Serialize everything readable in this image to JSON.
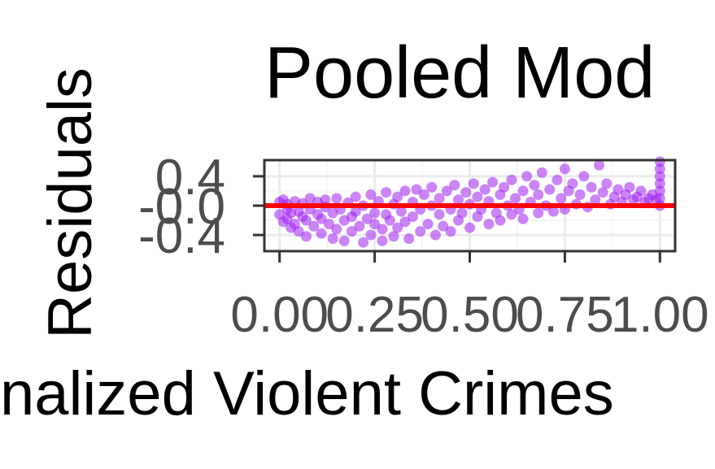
{
  "chart_data": {
    "type": "scatter",
    "title": "Pooled Mod",
    "xlabel": "nalized Violent Crimes",
    "ylabel": "Residuals",
    "xlim": [
      -0.04,
      1.04
    ],
    "ylim": [
      -0.62,
      0.62
    ],
    "x_ticks": [
      0.0,
      0.25,
      0.5,
      0.75,
      1.0
    ],
    "x_tick_labels": [
      "0.00",
      "0.25",
      "0.50",
      "0.75",
      "1.00"
    ],
    "y_ticks": [
      0.4,
      0.0,
      -0.4
    ],
    "y_tick_labels": [
      "0.4",
      "0.0",
      "-0.4"
    ],
    "y_tick_overlap_label": "-0.0",
    "reference_line": {
      "y": 0,
      "color": "#ff0000"
    },
    "point_color": "#a020f0",
    "point_alpha": 0.55,
    "grid": true,
    "series": [
      {
        "points": [
          [
            0.0,
            -0.12
          ],
          [
            0.0,
            0.05
          ],
          [
            0.01,
            -0.22
          ],
          [
            0.01,
            0.08
          ],
          [
            0.02,
            -0.18
          ],
          [
            0.02,
            -0.05
          ],
          [
            0.02,
            0.02
          ],
          [
            0.03,
            -0.3
          ],
          [
            0.03,
            -0.1
          ],
          [
            0.04,
            0.06
          ],
          [
            0.04,
            -0.25
          ],
          [
            0.05,
            -0.08
          ],
          [
            0.05,
            -0.35
          ],
          [
            0.06,
            0.03
          ],
          [
            0.06,
            -0.15
          ],
          [
            0.07,
            -0.42
          ],
          [
            0.07,
            -0.2
          ],
          [
            0.08,
            0.1
          ],
          [
            0.08,
            -0.05
          ],
          [
            0.09,
            -0.28
          ],
          [
            0.1,
            -0.12
          ],
          [
            0.1,
            0.05
          ],
          [
            0.11,
            -0.38
          ],
          [
            0.11,
            -0.18
          ],
          [
            0.12,
            0.08
          ],
          [
            0.12,
            -0.02
          ],
          [
            0.13,
            -0.25
          ],
          [
            0.14,
            -0.45
          ],
          [
            0.14,
            -0.1
          ],
          [
            0.15,
            0.1
          ],
          [
            0.15,
            -0.32
          ],
          [
            0.16,
            -0.05
          ],
          [
            0.17,
            -0.2
          ],
          [
            0.17,
            -0.48
          ],
          [
            0.18,
            0.04
          ],
          [
            0.19,
            -0.15
          ],
          [
            0.19,
            -0.35
          ],
          [
            0.2,
            0.12
          ],
          [
            0.2,
            -0.08
          ],
          [
            0.21,
            -0.28
          ],
          [
            0.22,
            -0.5
          ],
          [
            0.22,
            0.0
          ],
          [
            0.23,
            -0.18
          ],
          [
            0.24,
            0.15
          ],
          [
            0.24,
            -0.4
          ],
          [
            0.25,
            -0.1
          ],
          [
            0.25,
            -0.25
          ],
          [
            0.26,
            0.06
          ],
          [
            0.27,
            -0.32
          ],
          [
            0.27,
            -0.48
          ],
          [
            0.28,
            0.18
          ],
          [
            0.28,
            -0.12
          ],
          [
            0.29,
            -0.2
          ],
          [
            0.3,
            0.02
          ],
          [
            0.3,
            -0.42
          ],
          [
            0.31,
            0.12
          ],
          [
            0.31,
            -0.3
          ],
          [
            0.32,
            -0.08
          ],
          [
            0.33,
            0.2
          ],
          [
            0.33,
            -0.22
          ],
          [
            0.34,
            -0.45
          ],
          [
            0.35,
            0.05
          ],
          [
            0.35,
            -0.15
          ],
          [
            0.36,
            0.22
          ],
          [
            0.37,
            -0.35
          ],
          [
            0.37,
            -0.05
          ],
          [
            0.38,
            0.15
          ],
          [
            0.39,
            -0.25
          ],
          [
            0.4,
            0.0
          ],
          [
            0.4,
            0.25
          ],
          [
            0.41,
            -0.4
          ],
          [
            0.42,
            -0.12
          ],
          [
            0.42,
            0.1
          ],
          [
            0.43,
            -0.28
          ],
          [
            0.44,
            0.2
          ],
          [
            0.45,
            -0.05
          ],
          [
            0.45,
            -0.35
          ],
          [
            0.46,
            0.28
          ],
          [
            0.47,
            0.08
          ],
          [
            0.47,
            -0.2
          ],
          [
            0.48,
            -0.1
          ],
          [
            0.49,
            0.18
          ],
          [
            0.5,
            -0.3
          ],
          [
            0.5,
            0.02
          ],
          [
            0.51,
            0.3
          ],
          [
            0.52,
            -0.15
          ],
          [
            0.52,
            0.12
          ],
          [
            0.53,
            -0.05
          ],
          [
            0.54,
            0.22
          ],
          [
            0.55,
            -0.25
          ],
          [
            0.55,
            0.06
          ],
          [
            0.56,
            0.32
          ],
          [
            0.57,
            -0.1
          ],
          [
            0.58,
            0.15
          ],
          [
            0.58,
            -0.2
          ],
          [
            0.59,
            0.25
          ],
          [
            0.6,
            0.0
          ],
          [
            0.61,
            -0.12
          ],
          [
            0.61,
            0.35
          ],
          [
            0.62,
            0.1
          ],
          [
            0.63,
            -0.05
          ],
          [
            0.64,
            0.2
          ],
          [
            0.64,
            -0.18
          ],
          [
            0.65,
            0.4
          ],
          [
            0.66,
            0.05
          ],
          [
            0.67,
            0.28
          ],
          [
            0.68,
            -0.1
          ],
          [
            0.68,
            0.15
          ],
          [
            0.69,
            0.45
          ],
          [
            0.7,
            0.0
          ],
          [
            0.71,
            0.22
          ],
          [
            0.72,
            -0.08
          ],
          [
            0.73,
            0.35
          ],
          [
            0.74,
            0.1
          ],
          [
            0.75,
            0.5
          ],
          [
            0.75,
            -0.05
          ],
          [
            0.76,
            0.2
          ],
          [
            0.77,
            0.3
          ],
          [
            0.78,
            0.02
          ],
          [
            0.79,
            0.15
          ],
          [
            0.8,
            0.4
          ],
          [
            0.81,
            -0.02
          ],
          [
            0.82,
            0.25
          ],
          [
            0.83,
            0.08
          ],
          [
            0.84,
            0.55
          ],
          [
            0.85,
            0.18
          ],
          [
            0.86,
            0.3
          ],
          [
            0.87,
            0.02
          ],
          [
            0.88,
            0.12
          ],
          [
            0.89,
            0.22
          ],
          [
            0.9,
            0.05
          ],
          [
            0.91,
            0.15
          ],
          [
            0.92,
            0.25
          ],
          [
            0.93,
            0.08
          ],
          [
            0.94,
            0.12
          ],
          [
            0.95,
            0.2
          ],
          [
            0.96,
            0.05
          ],
          [
            0.97,
            0.1
          ],
          [
            0.98,
            0.15
          ],
          [
            0.99,
            0.08
          ],
          [
            1.0,
            0.6
          ],
          [
            1.0,
            0.5
          ],
          [
            1.0,
            0.4
          ],
          [
            1.0,
            0.3
          ],
          [
            1.0,
            0.2
          ],
          [
            1.0,
            0.1
          ],
          [
            1.0,
            0.0
          ]
        ]
      }
    ]
  }
}
